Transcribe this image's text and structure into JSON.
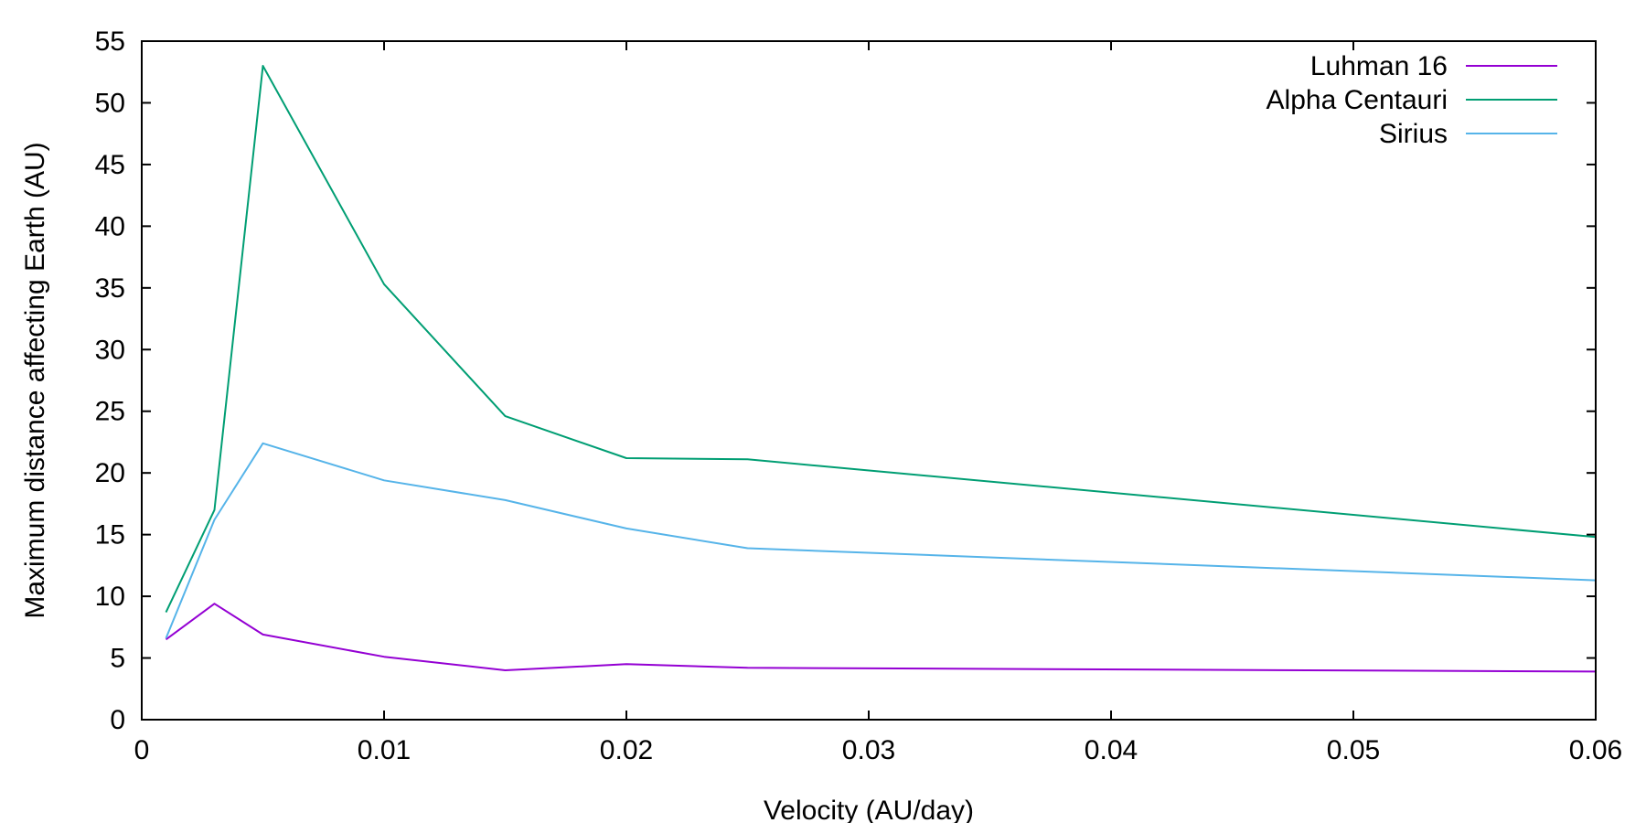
{
  "chart_data": {
    "type": "line",
    "title": "",
    "xlabel": "Velocity (AU/day)",
    "ylabel": "Maximum distance affecting Earth (AU)",
    "xlim": [
      0,
      0.06
    ],
    "ylim": [
      0,
      55
    ],
    "xticks": [
      0,
      0.01,
      0.02,
      0.03,
      0.04,
      0.05,
      0.06
    ],
    "xtick_labels": [
      "0",
      "0.01",
      "0.02",
      "0.03",
      "0.04",
      "0.05",
      "0.06"
    ],
    "yticks": [
      0,
      5,
      10,
      15,
      20,
      25,
      30,
      35,
      40,
      45,
      50,
      55
    ],
    "ytick_labels": [
      "0",
      "5",
      "10",
      "15",
      "20",
      "25",
      "30",
      "35",
      "40",
      "45",
      "50",
      "55"
    ],
    "grid": false,
    "legend_position": "top-right",
    "series": [
      {
        "name": "Luhman 16",
        "color": "#9400d3",
        "x": [
          0.001,
          0.003,
          0.005,
          0.01,
          0.015,
          0.02,
          0.025,
          0.06
        ],
        "y": [
          6.5,
          9.4,
          6.9,
          5.1,
          4.0,
          4.5,
          4.2,
          3.9
        ]
      },
      {
        "name": "Alpha Centauri",
        "color": "#009e73",
        "x": [
          0.001,
          0.003,
          0.005,
          0.01,
          0.015,
          0.02,
          0.025,
          0.06
        ],
        "y": [
          8.7,
          17.0,
          53.0,
          35.3,
          24.6,
          21.2,
          21.1,
          14.8
        ]
      },
      {
        "name": "Sirius",
        "color": "#56b4e9",
        "x": [
          0.001,
          0.003,
          0.005,
          0.01,
          0.015,
          0.02,
          0.025,
          0.06
        ],
        "y": [
          6.6,
          16.2,
          22.4,
          19.4,
          17.8,
          15.5,
          13.9,
          11.3
        ]
      }
    ]
  }
}
